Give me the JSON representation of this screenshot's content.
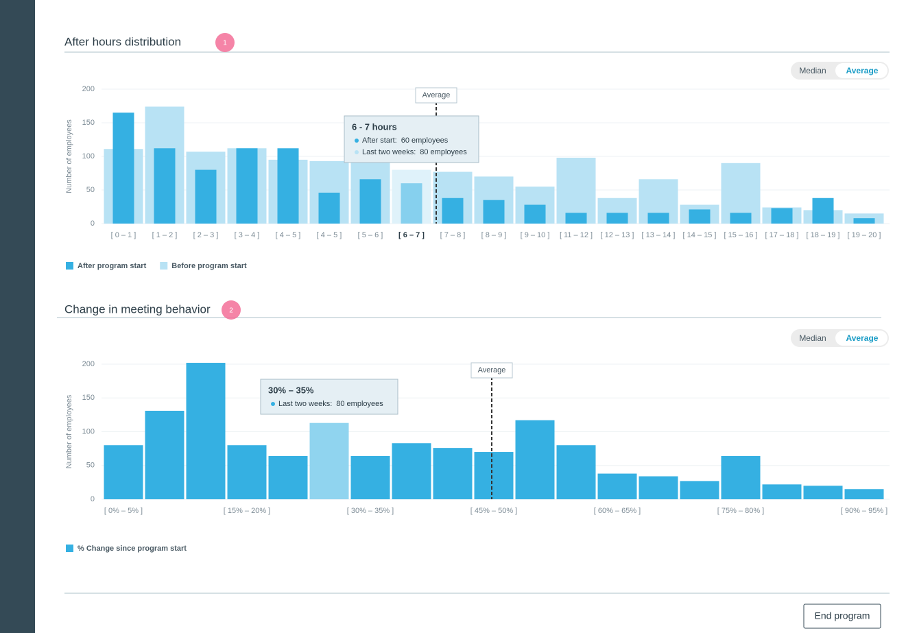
{
  "chart_data": [
    {
      "type": "bar",
      "title": "After hours distribution",
      "y_label": "Number of employees",
      "categories": [
        "[ 0 – 1 ]",
        "[ 1 – 2 ]",
        "[ 2 – 3 ]",
        "[ 3 – 4 ]",
        "[ 4 – 5 ]",
        "[ 4 – 5 ]",
        "[ 5 – 6 ]",
        "[ 6 – 7 ]",
        "[ 7 – 8 ]",
        "[ 8 – 9 ]",
        "[ 9 – 10 ]",
        "[ 11 – 12 ]",
        "[ 12 – 13 ]",
        "[ 13 – 14 ]",
        "[ 14 – 15 ]",
        "[ 15 – 16 ]",
        "[ 17 – 18 ]",
        "[ 18 – 19 ]",
        "[ 19 – 20 ]"
      ],
      "series": [
        {
          "name": "After program start",
          "color": "#35b0e2",
          "values": [
            165,
            112,
            80,
            112,
            112,
            46,
            66,
            60,
            38,
            35,
            28,
            16,
            16,
            16,
            21,
            16,
            23,
            38,
            8
          ]
        },
        {
          "name": "Before program start",
          "color": "#b8e2f4",
          "values": [
            111,
            174,
            107,
            112,
            95,
            93,
            96,
            80,
            77,
            70,
            55,
            98,
            38,
            66,
            28,
            90,
            24,
            20,
            15
          ]
        }
      ],
      "ylim": [
        0,
        200
      ],
      "yticks": [
        0,
        50,
        100,
        150,
        200
      ],
      "grid": true,
      "highlight": 7,
      "average": {
        "label": "Average",
        "x": 8.1
      },
      "tooltip": {
        "title": "6 - 7 hours",
        "rows": [
          {
            "label": "After start:",
            "value": "60 employees"
          },
          {
            "label": "Last two weeks:",
            "value": "80 employees"
          }
        ]
      }
    },
    {
      "type": "bar",
      "title": "Change in meeting behavior",
      "y_label": "Number of employees",
      "categories": [
        "[ 0% – 5% ]",
        null,
        null,
        "[ 15% – 20% ]",
        null,
        null,
        "[ 30% – 35% ]",
        null,
        null,
        "[ 45% – 50% ]",
        null,
        null,
        "[ 60% – 65% ]",
        null,
        null,
        "[ 75% – 80% ]",
        null,
        null,
        "[ 90% – 95% ]"
      ],
      "series": [
        {
          "name": "% Change since program start",
          "color": "#35b0e2",
          "values": [
            80,
            131,
            202,
            80,
            64,
            113,
            64,
            83,
            76,
            70,
            117,
            80,
            38,
            34,
            27,
            64,
            22,
            20,
            15
          ]
        }
      ],
      "ylim": [
        0,
        200
      ],
      "yticks": [
        0,
        50,
        100,
        150,
        200
      ],
      "grid": true,
      "highlight": 5,
      "average": {
        "label": "Average",
        "x": 9.45
      },
      "tooltip": {
        "title": "30% – 35%",
        "rows": [
          {
            "label": "Last two weeks:",
            "value": "80 employees"
          }
        ]
      }
    }
  ],
  "ui": {
    "steps": [
      "1",
      "2"
    ],
    "toggles": [
      {
        "options": [
          "Median",
          "Average"
        ]
      },
      {
        "options": [
          "Median",
          "Average"
        ]
      }
    ],
    "button": "End program"
  }
}
